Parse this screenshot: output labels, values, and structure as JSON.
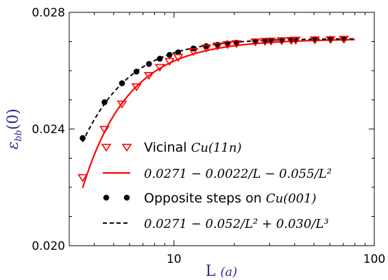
{
  "chart_data": {
    "type": "scatter",
    "xlabel": "L  (a)",
    "ylabel": "ε_bb(0)",
    "xscale": "log",
    "xlim": [
      3,
      100
    ],
    "ylim": [
      0.02,
      0.028
    ],
    "x_ticks": [
      10,
      100
    ],
    "x_tick_labels": [
      "10",
      "100"
    ],
    "y_ticks": [
      0.02,
      0.024,
      0.028
    ],
    "y_tick_labels": [
      "0.020",
      "0.024",
      "0.028"
    ],
    "grid": false,
    "legend_position": "lower-right",
    "colors": {
      "vicinal": "#ff0000",
      "opposite": "#000000",
      "axis_label": "#2a2a9a"
    },
    "series": [
      {
        "name": "Vicinal Cu(11n)",
        "kind": "markers",
        "marker": "triangle-down-open",
        "color": "#ff0000",
        "x": [
          3.5,
          4.5,
          5.5,
          6.5,
          7.5,
          8.5,
          9.5,
          10.5,
          12.5,
          14.5,
          16.5,
          18.5,
          20.5,
          25.5,
          28.5,
          30.5,
          34.5,
          38.5,
          40.5,
          50.5,
          60.5,
          70.5
        ],
        "y": [
          0.02235,
          0.024,
          0.02487,
          0.02546,
          0.02585,
          0.02613,
          0.02633,
          0.02647,
          0.02667,
          0.02679,
          0.02686,
          0.02691,
          0.02694,
          0.027,
          0.02702,
          0.02703,
          0.02704,
          0.02705,
          0.02706,
          0.02707,
          0.02708,
          0.02709
        ]
      },
      {
        "name": "0.0271 − 0.0022/L − 0.055/L²",
        "kind": "fit-solid",
        "color": "#ff0000",
        "formula": {
          "a": 0.0271,
          "b": -0.0022,
          "c": -0.055
        }
      },
      {
        "name": "Opposite steps on Cu(001)",
        "kind": "markers",
        "marker": "circle-filled",
        "color": "#000000",
        "x": [
          3.5,
          4.5,
          5.5,
          6.5,
          7.5,
          8.5,
          9.5,
          10.5,
          12.5,
          14.5,
          16.5,
          18.5,
          20.5,
          25.5,
          28.5,
          30.5,
          34.5,
          38.5,
          40.5,
          50.5,
          60.5,
          70.5
        ],
        "y": [
          0.02369,
          0.02492,
          0.02557,
          0.02597,
          0.02623,
          0.02641,
          0.02654,
          0.02663,
          0.02676,
          0.02684,
          0.02689,
          0.02693,
          0.02696,
          0.027,
          0.02702,
          0.02703,
          0.02704,
          0.02706,
          0.02706,
          0.02708,
          0.02709,
          0.02709
        ]
      },
      {
        "name": "0.0271 − 0.052/L² + 0.030/L³",
        "kind": "fit-dashed",
        "color": "#000000",
        "formula": {
          "a": 0.0271,
          "b2": -0.052,
          "c3": 0.03
        }
      }
    ],
    "legend": [
      {
        "label_text": "Vicinal ",
        "label_math": "Cu(11n)"
      },
      {
        "label_text": "",
        "label_math": "0.0271 − 0.0022/L − 0.055/L²"
      },
      {
        "label_text": "Opposite steps on ",
        "label_math": "Cu(001)"
      },
      {
        "label_text": "",
        "label_math": "0.0271 − 0.052/L² + 0.030/L³"
      }
    ]
  }
}
